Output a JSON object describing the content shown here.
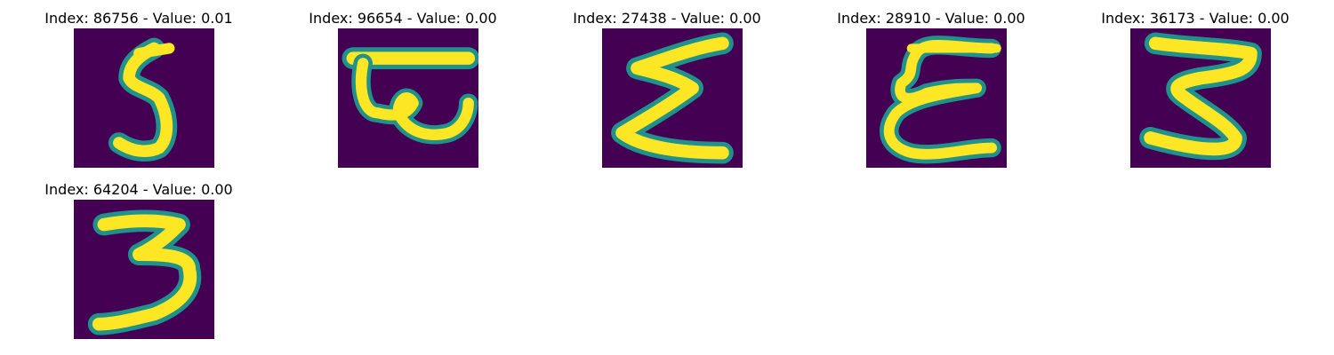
{
  "figure": {
    "background": "#ffffff",
    "colormap": {
      "low": "#440154",
      "mid": "#21918c",
      "high": "#fde725"
    },
    "panels": [
      {
        "title": "Index: 86756 - Value: 0.01",
        "glyph": "handwritten-5"
      },
      {
        "title": "Index: 96654 - Value: 0.00",
        "glyph": "handwritten-devanagari-like"
      },
      {
        "title": "Index: 27438 - Value: 0.00",
        "glyph": "handwritten-sigma-like"
      },
      {
        "title": "Index: 28910 - Value: 0.00",
        "glyph": "handwritten-epsilon-like"
      },
      {
        "title": "Index: 36173 - Value: 0.00",
        "glyph": "handwritten-3"
      },
      {
        "title": "Index: 64204 - Value: 0.00",
        "glyph": "handwritten-3"
      }
    ]
  }
}
